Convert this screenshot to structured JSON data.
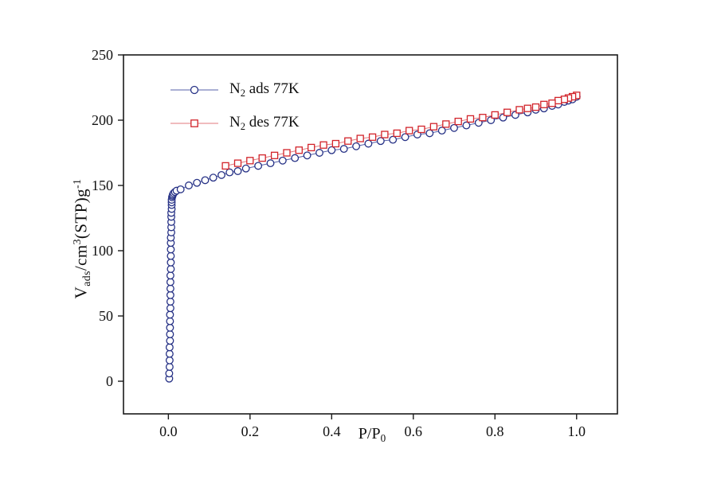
{
  "page": {
    "background": "#ffffff"
  },
  "axes": {
    "x_title": {
      "main": "P/P",
      "sub": "0"
    },
    "y_title": {
      "v": "V",
      "v_sub": "ads",
      "mid": "/cm",
      "cube": "3",
      "stp": "(STP)g",
      "exp": "-1"
    }
  },
  "legend": {
    "items": [
      {
        "pre": "N",
        "sub": "2",
        "post": " ads 77K"
      },
      {
        "pre": "N",
        "sub": "2",
        "post": " des 77K"
      }
    ]
  },
  "chart_data": {
    "type": "line",
    "title": "",
    "xlabel": "P/P0",
    "ylabel": "Vads/cm3(STP)g-1",
    "xlim": [
      -0.11,
      1.1
    ],
    "ylim": [
      -25,
      250
    ],
    "xticks": [
      0.0,
      0.2,
      0.4,
      0.6,
      0.8,
      1.0
    ],
    "xtick_labels": [
      "0.0",
      "0.2",
      "0.4",
      "0.6",
      "0.8",
      "1.0"
    ],
    "yticks": [
      0,
      50,
      100,
      150,
      200,
      250
    ],
    "ytick_labels": [
      "0",
      "50",
      "100",
      "150",
      "200",
      "250"
    ],
    "grid": false,
    "legend_position": "top-left-inside",
    "axis_color": "#1a1a1a",
    "series": [
      {
        "name": "N2 ads 77K",
        "marker": "circle",
        "color": "#273286",
        "line_color": "#5560a8",
        "points": [
          [
            0.002,
            2
          ],
          [
            0.002,
            6
          ],
          [
            0.003,
            11
          ],
          [
            0.003,
            16
          ],
          [
            0.003,
            21
          ],
          [
            0.003,
            26
          ],
          [
            0.004,
            31
          ],
          [
            0.004,
            36
          ],
          [
            0.004,
            41
          ],
          [
            0.004,
            46
          ],
          [
            0.004,
            51
          ],
          [
            0.005,
            56
          ],
          [
            0.005,
            61
          ],
          [
            0.005,
            66
          ],
          [
            0.005,
            71
          ],
          [
            0.005,
            76
          ],
          [
            0.005,
            81
          ],
          [
            0.006,
            86
          ],
          [
            0.006,
            91
          ],
          [
            0.006,
            96
          ],
          [
            0.006,
            101
          ],
          [
            0.006,
            106
          ],
          [
            0.006,
            110
          ],
          [
            0.007,
            114
          ],
          [
            0.007,
            118
          ],
          [
            0.007,
            122
          ],
          [
            0.007,
            126
          ],
          [
            0.007,
            129
          ],
          [
            0.008,
            132
          ],
          [
            0.008,
            135
          ],
          [
            0.008,
            137
          ],
          [
            0.008,
            139
          ],
          [
            0.009,
            141
          ],
          [
            0.01,
            142
          ],
          [
            0.011,
            143
          ],
          [
            0.013,
            144
          ],
          [
            0.016,
            145
          ],
          [
            0.02,
            146
          ],
          [
            0.03,
            147
          ],
          [
            0.05,
            150
          ],
          [
            0.07,
            152
          ],
          [
            0.09,
            154
          ],
          [
            0.11,
            156
          ],
          [
            0.13,
            158
          ],
          [
            0.15,
            160
          ],
          [
            0.17,
            161
          ],
          [
            0.19,
            163
          ],
          [
            0.22,
            165
          ],
          [
            0.25,
            167
          ],
          [
            0.28,
            169
          ],
          [
            0.31,
            171
          ],
          [
            0.34,
            173
          ],
          [
            0.37,
            175
          ],
          [
            0.4,
            177
          ],
          [
            0.43,
            178
          ],
          [
            0.46,
            180
          ],
          [
            0.49,
            182
          ],
          [
            0.52,
            184
          ],
          [
            0.55,
            185
          ],
          [
            0.58,
            187
          ],
          [
            0.61,
            189
          ],
          [
            0.64,
            190
          ],
          [
            0.67,
            192
          ],
          [
            0.7,
            194
          ],
          [
            0.73,
            196
          ],
          [
            0.76,
            198
          ],
          [
            0.79,
            200
          ],
          [
            0.82,
            202
          ],
          [
            0.85,
            204
          ],
          [
            0.88,
            206
          ],
          [
            0.9,
            208
          ],
          [
            0.92,
            209
          ],
          [
            0.94,
            211
          ],
          [
            0.955,
            212
          ],
          [
            0.97,
            214
          ],
          [
            0.98,
            215
          ],
          [
            0.99,
            216
          ],
          [
            1.0,
            218
          ]
        ]
      },
      {
        "name": "N2 des 77K",
        "marker": "square",
        "color": "#d2232a",
        "line_color": "#e27a7e",
        "points": [
          [
            1.0,
            219
          ],
          [
            0.99,
            218
          ],
          [
            0.98,
            217
          ],
          [
            0.97,
            216
          ],
          [
            0.955,
            215
          ],
          [
            0.94,
            213
          ],
          [
            0.92,
            212
          ],
          [
            0.9,
            210
          ],
          [
            0.88,
            209
          ],
          [
            0.86,
            208
          ],
          [
            0.83,
            206
          ],
          [
            0.8,
            204
          ],
          [
            0.77,
            202
          ],
          [
            0.74,
            201
          ],
          [
            0.71,
            199
          ],
          [
            0.68,
            197
          ],
          [
            0.65,
            195
          ],
          [
            0.62,
            193
          ],
          [
            0.59,
            192
          ],
          [
            0.56,
            190
          ],
          [
            0.53,
            189
          ],
          [
            0.5,
            187
          ],
          [
            0.47,
            186
          ],
          [
            0.44,
            184
          ],
          [
            0.41,
            182
          ],
          [
            0.38,
            181
          ],
          [
            0.35,
            179
          ],
          [
            0.32,
            177
          ],
          [
            0.29,
            175
          ],
          [
            0.26,
            173
          ],
          [
            0.23,
            171
          ],
          [
            0.2,
            169
          ],
          [
            0.17,
            167
          ],
          [
            0.14,
            165
          ]
        ]
      }
    ]
  }
}
